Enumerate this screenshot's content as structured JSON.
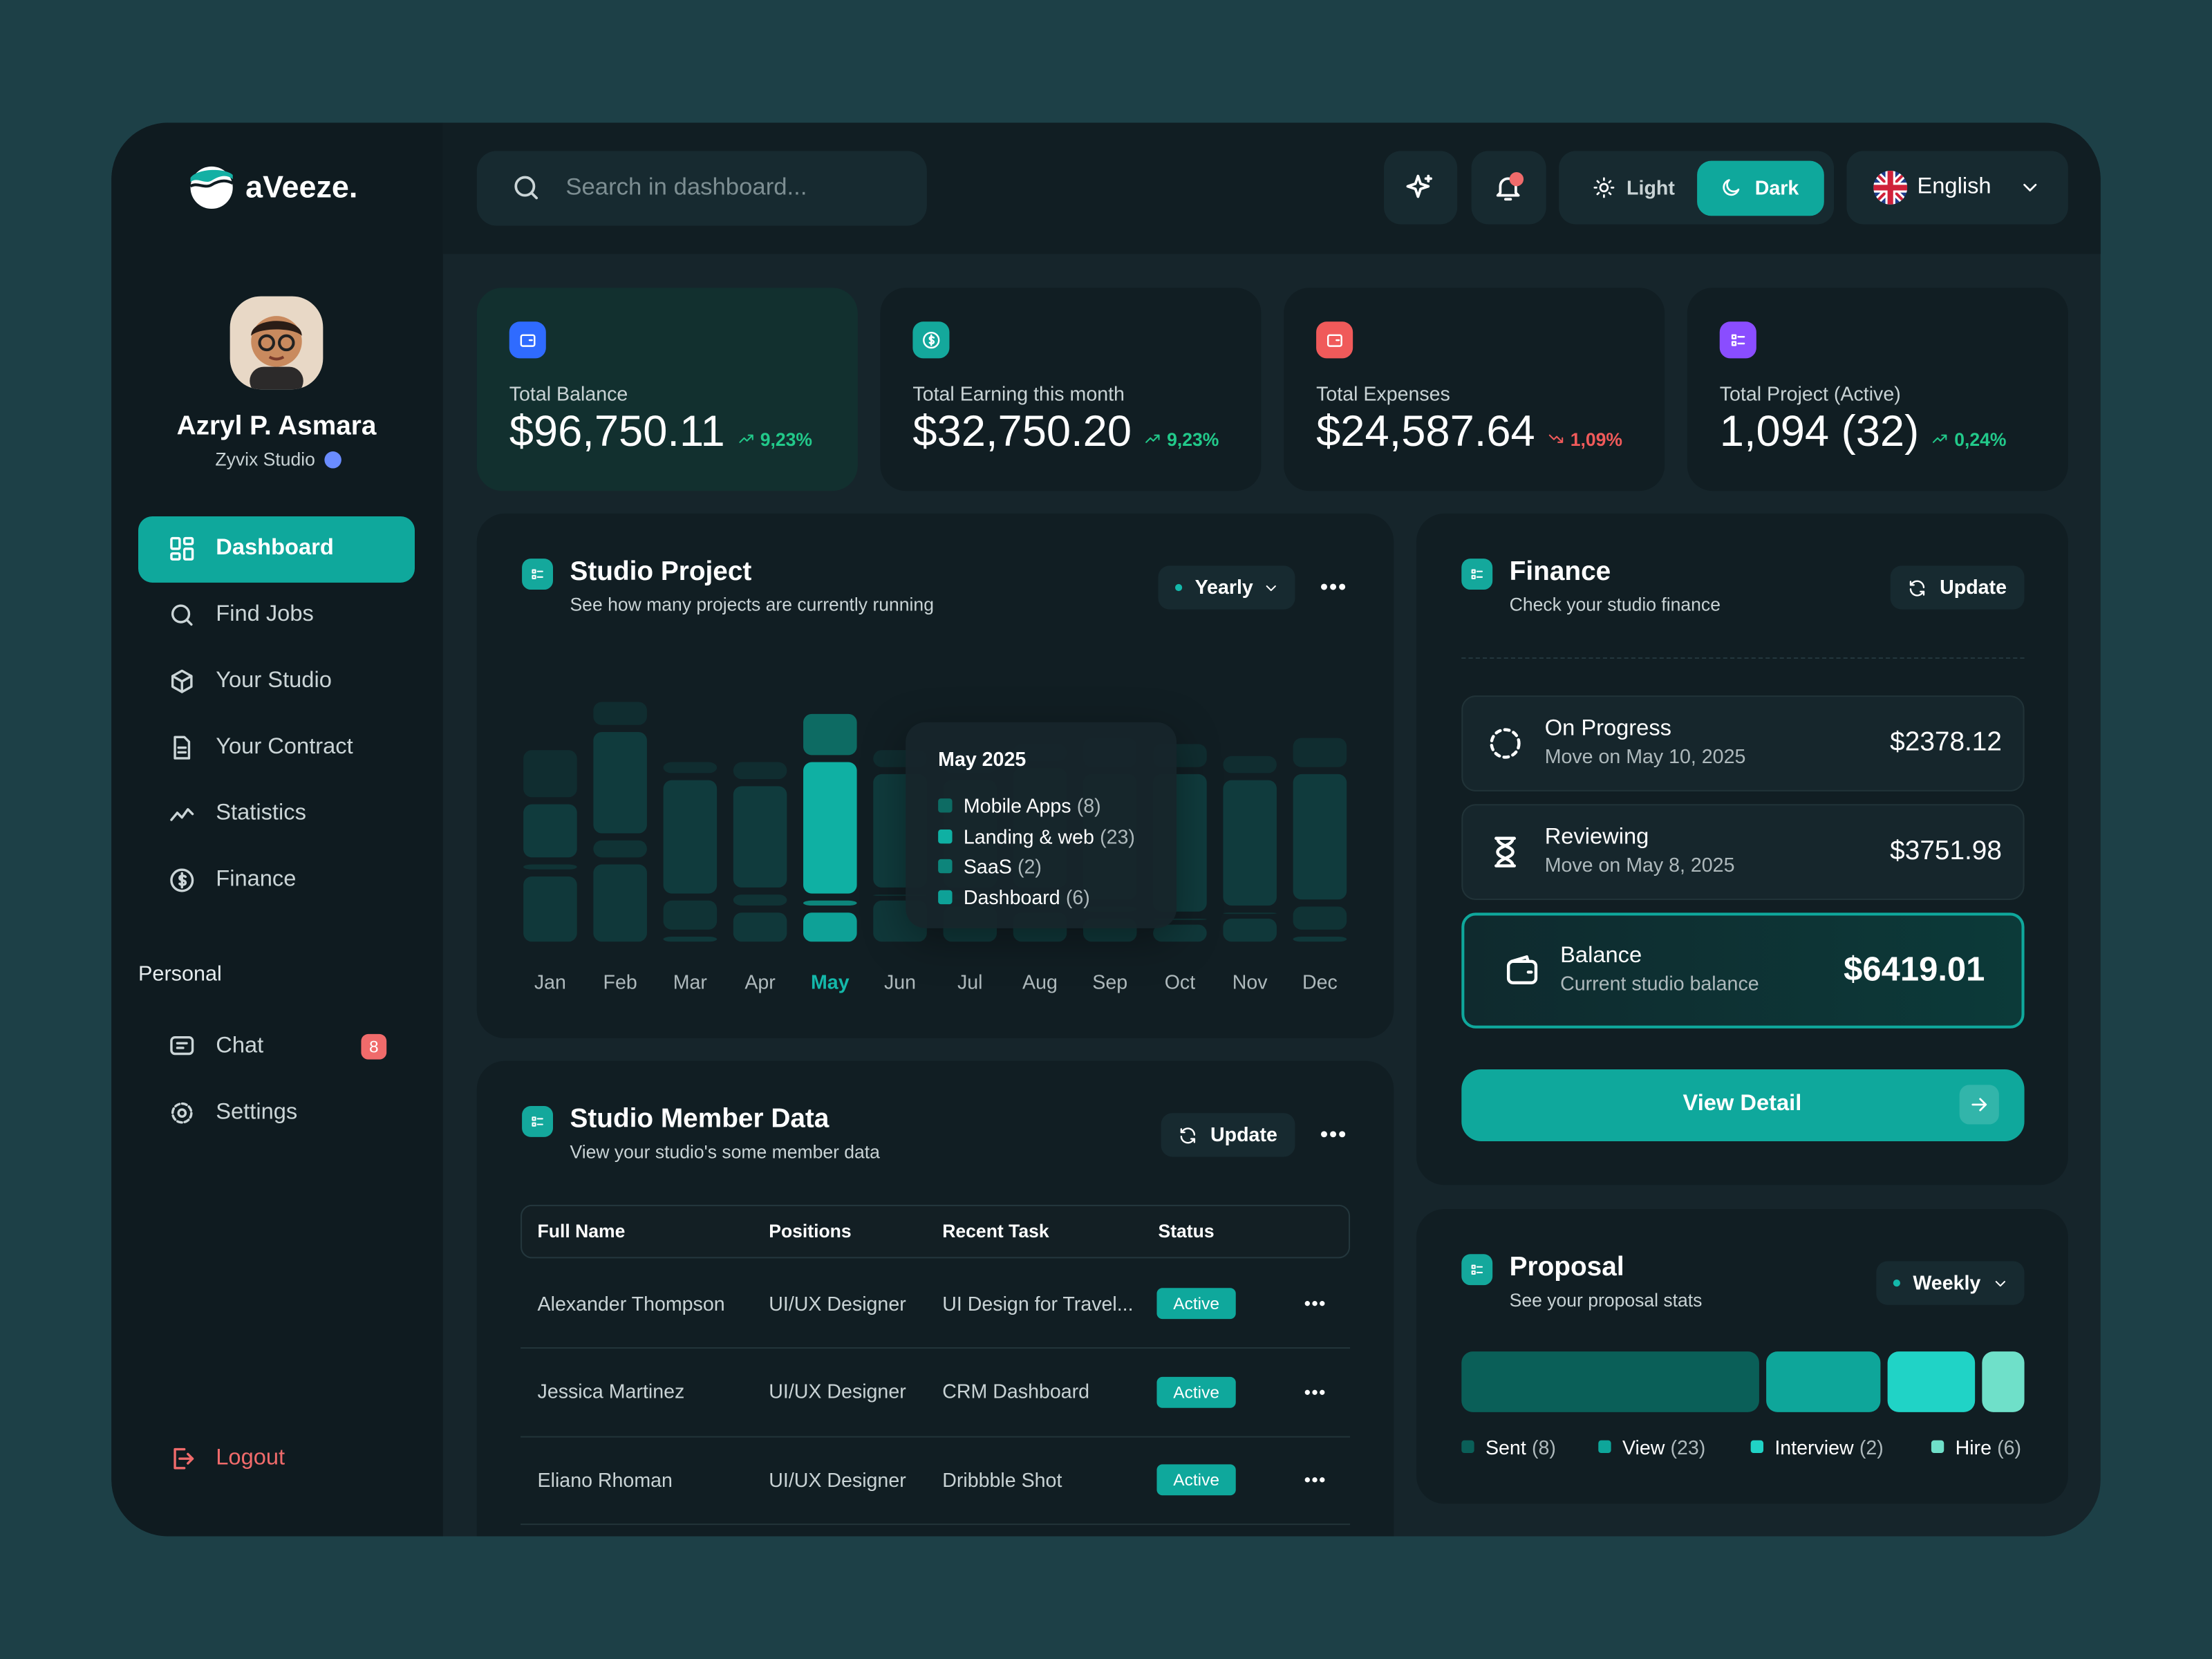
{
  "brand": "aVeeze.",
  "profile": {
    "name": "Azryl P. Asmara",
    "studio": "Zyvix Studio"
  },
  "menu": {
    "items": [
      "Dashboard",
      "Find Jobs",
      "Your Studio",
      "Your Contract",
      "Statistics",
      "Finance"
    ],
    "active": "Dashboard"
  },
  "personal": {
    "title": "Personal",
    "items": [
      {
        "label": "Chat",
        "badge": "8"
      },
      {
        "label": "Settings"
      }
    ]
  },
  "logout": "Logout",
  "header": {
    "search_placeholder": "Search in dashboard...",
    "theme_options": [
      "Light",
      "Dark"
    ],
    "theme": "Dark",
    "language": "English"
  },
  "stats": [
    {
      "label": "Total Balance",
      "value": "$96,750.11",
      "change": "9,23%",
      "trend": "up",
      "color": "#2f6bff"
    },
    {
      "label": "Total Earning this month",
      "value": "$32,750.20",
      "change": "9,23%",
      "trend": "up",
      "color": "#14a89c"
    },
    {
      "label": "Total Expenses",
      "value": "$24,587.64",
      "change": "1,09%",
      "trend": "down",
      "color": "#f05a5a"
    },
    {
      "label": "Total Project (Active)",
      "value": "1,094 (32)",
      "change": "0,24%",
      "trend": "up",
      "color": "#8a4dff"
    }
  ],
  "chart_data": {
    "type": "bar",
    "stacked": true,
    "title": "Studio Project",
    "subtitle": "See how many projects are currently running",
    "filter": "Yearly",
    "categories": [
      "Jan",
      "Feb",
      "Mar",
      "Apr",
      "May",
      "Jun",
      "Jul",
      "Aug",
      "Sep",
      "Oct",
      "Nov",
      "Dec"
    ],
    "series": [
      {
        "name": "Mobile Apps",
        "color": "#0d6b63",
        "values": [
          9,
          5,
          3,
          4,
          8,
          4,
          5,
          4,
          6,
          5,
          4,
          6
        ]
      },
      {
        "name": "Landing & web",
        "color": "#0fb0a3",
        "values": [
          10,
          18,
          20,
          18,
          23,
          20,
          19,
          21,
          22,
          24,
          22,
          22
        ]
      },
      {
        "name": "SaaS",
        "color": "#0d857b",
        "values": [
          2,
          4,
          6,
          3,
          2,
          1,
          2,
          3,
          2,
          1,
          1,
          5
        ]
      },
      {
        "name": "Dashboard",
        "color": "#0ea197",
        "values": [
          12,
          14,
          2,
          6,
          6,
          8,
          7,
          6,
          5,
          4,
          5,
          2
        ]
      }
    ],
    "ylim": [
      0,
      45
    ],
    "highlight": "May",
    "tooltip": {
      "title": "May 2025",
      "items": [
        "(8)",
        "(23)",
        "(2)",
        "(6)"
      ]
    }
  },
  "members": {
    "title": "Studio Member Data",
    "subtitle": "View your studio's some member data",
    "action": "Update",
    "columns": [
      "Full Name",
      "Positions",
      "Recent Task",
      "Status"
    ],
    "rows": [
      [
        "Alexander Thompson",
        "UI/UX Designer",
        "UI Design for Travel...",
        "Active"
      ],
      [
        "Jessica Martinez",
        "UI/UX Designer",
        "CRM Dashboard",
        "Active"
      ],
      [
        "Eliano Rhoman",
        "UI/UX Designer",
        "Dribbble Shot",
        "Active"
      ]
    ]
  },
  "finance": {
    "title": "Finance",
    "subtitle": "Check your studio finance",
    "action": "Update",
    "items": [
      {
        "title": "On Progress",
        "subtitle": "Move on May 10, 2025",
        "amount": "$2378.12"
      },
      {
        "title": "Reviewing",
        "subtitle": "Move on May 8, 2025",
        "amount": "$3751.98"
      },
      {
        "title": "Balance",
        "subtitle": "Current studio balance",
        "amount": "$6419.01"
      }
    ],
    "button": "View Detail"
  },
  "proposal": {
    "title": "Proposal",
    "subtitle": "See your proposal stats",
    "filter": "Weekly",
    "items": [
      {
        "name": "Sent",
        "count": "(8)",
        "color": "#0a5f58"
      },
      {
        "name": "View",
        "count": "(23)",
        "color": "#0ea69a"
      },
      {
        "name": "Interview",
        "count": "(2)",
        "color": "#20d3c6"
      },
      {
        "name": "Hire",
        "count": "(6)",
        "color": "#6fe0c9"
      }
    ]
  }
}
